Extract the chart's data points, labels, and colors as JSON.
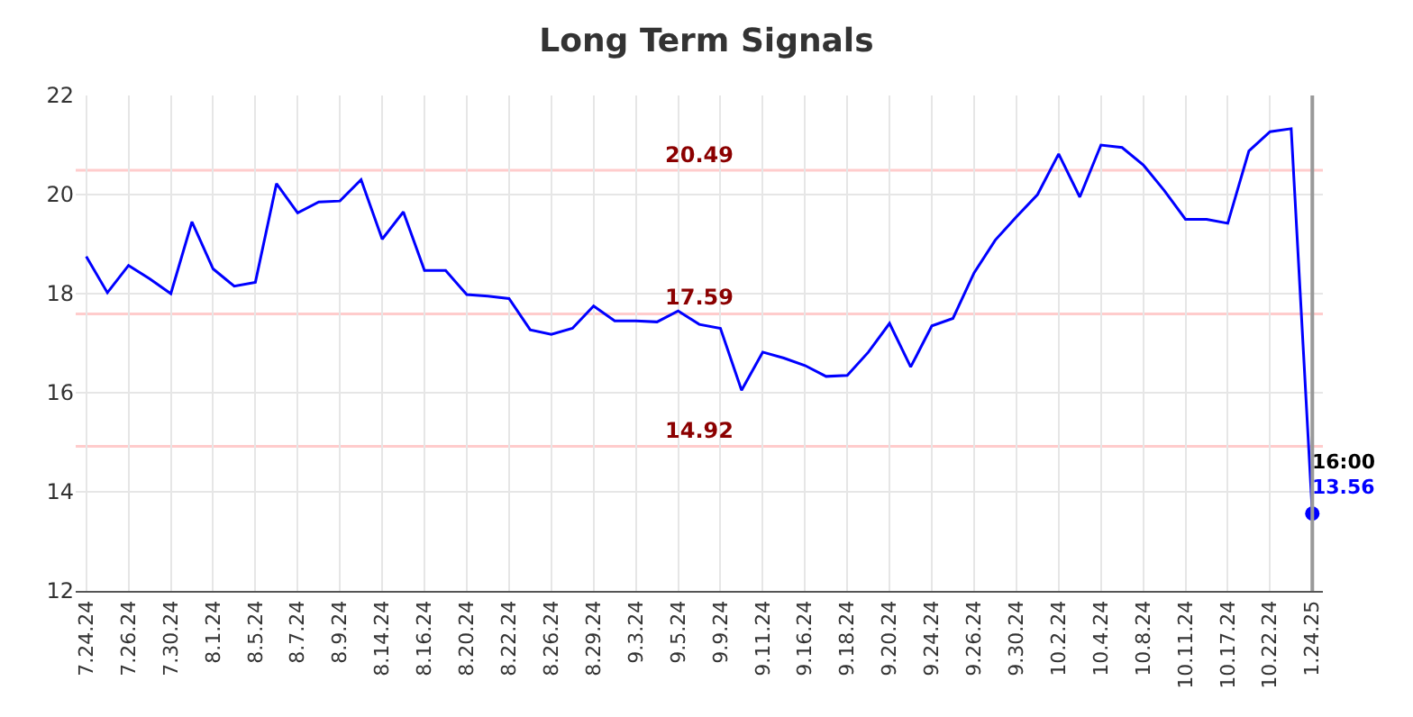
{
  "chart_data": {
    "type": "line",
    "title": "Long Term Signals",
    "categories": [
      "7.24.24",
      null,
      "7.26.24",
      null,
      "7.30.24",
      null,
      "8.1.24",
      null,
      "8.5.24",
      null,
      "8.7.24",
      null,
      "8.9.24",
      null,
      "8.14.24",
      null,
      "8.16.24",
      null,
      "8.20.24",
      null,
      "8.22.24",
      null,
      "8.26.24",
      null,
      "8.29.24",
      null,
      "9.3.24",
      null,
      "9.5.24",
      null,
      "9.9.24",
      null,
      "9.11.24",
      null,
      "9.16.24",
      null,
      "9.18.24",
      null,
      "9.20.24",
      null,
      "9.24.24",
      null,
      "9.26.24",
      null,
      "9.30.24",
      null,
      "10.2.24",
      null,
      "10.4.24",
      null,
      "10.8.24",
      null,
      "10.11.24",
      null,
      "10.17.24",
      null,
      "10.22.24",
      null,
      "1.24.25"
    ],
    "series": [
      {
        "color": "#0000ff",
        "values": [
          18.75,
          18.02,
          18.57,
          18.3,
          18.0,
          19.45,
          18.5,
          18.15,
          18.23,
          20.22,
          19.63,
          19.85,
          19.87,
          20.3,
          19.1,
          19.65,
          18.47,
          18.47,
          17.98,
          17.95,
          17.9,
          17.27,
          17.18,
          17.3,
          17.75,
          17.45,
          17.45,
          17.43,
          17.65,
          17.38,
          17.3,
          16.05,
          16.82,
          16.7,
          16.55,
          16.33,
          16.35,
          16.82,
          17.4,
          16.52,
          17.35,
          17.5,
          18.42,
          19.08,
          19.55,
          20.0,
          20.82,
          19.95,
          21.0,
          20.95,
          20.6,
          20.08,
          19.5,
          19.5,
          19.42,
          20.88,
          21.27,
          21.33,
          13.56
        ],
        "value_labels": [
          null,
          null,
          null,
          null,
          null,
          null,
          null,
          null,
          null,
          null,
          null,
          null,
          null,
          null,
          null,
          null,
          null,
          null,
          null,
          null,
          null,
          null,
          null,
          null,
          null,
          null,
          null,
          null,
          null,
          null,
          null,
          null,
          null,
          null,
          null,
          null,
          null,
          null,
          null,
          null,
          null,
          null,
          null,
          null,
          null,
          null,
          null,
          null,
          null,
          null,
          null,
          null,
          null,
          null,
          null,
          null,
          null,
          null,
          "13.56"
        ]
      }
    ],
    "ylim": [
      12,
      22
    ],
    "yticks": [
      12,
      14,
      16,
      18,
      20,
      22
    ],
    "grid": true,
    "ref_lines": [
      {
        "axis": "y",
        "value": 20.49,
        "label": "20.49",
        "color": "#ffcccc"
      },
      {
        "axis": "y",
        "value": 17.59,
        "label": "17.59",
        "color": "#ffcccc"
      },
      {
        "axis": "y",
        "value": 14.92,
        "label": "14.92",
        "color": "#ffcccc"
      },
      {
        "axis": "x",
        "value": "1.24.25",
        "color": "#999999"
      }
    ],
    "annotations": [
      {
        "text": "16:00",
        "x": "1.24.25",
        "y": 13.56
      }
    ]
  }
}
